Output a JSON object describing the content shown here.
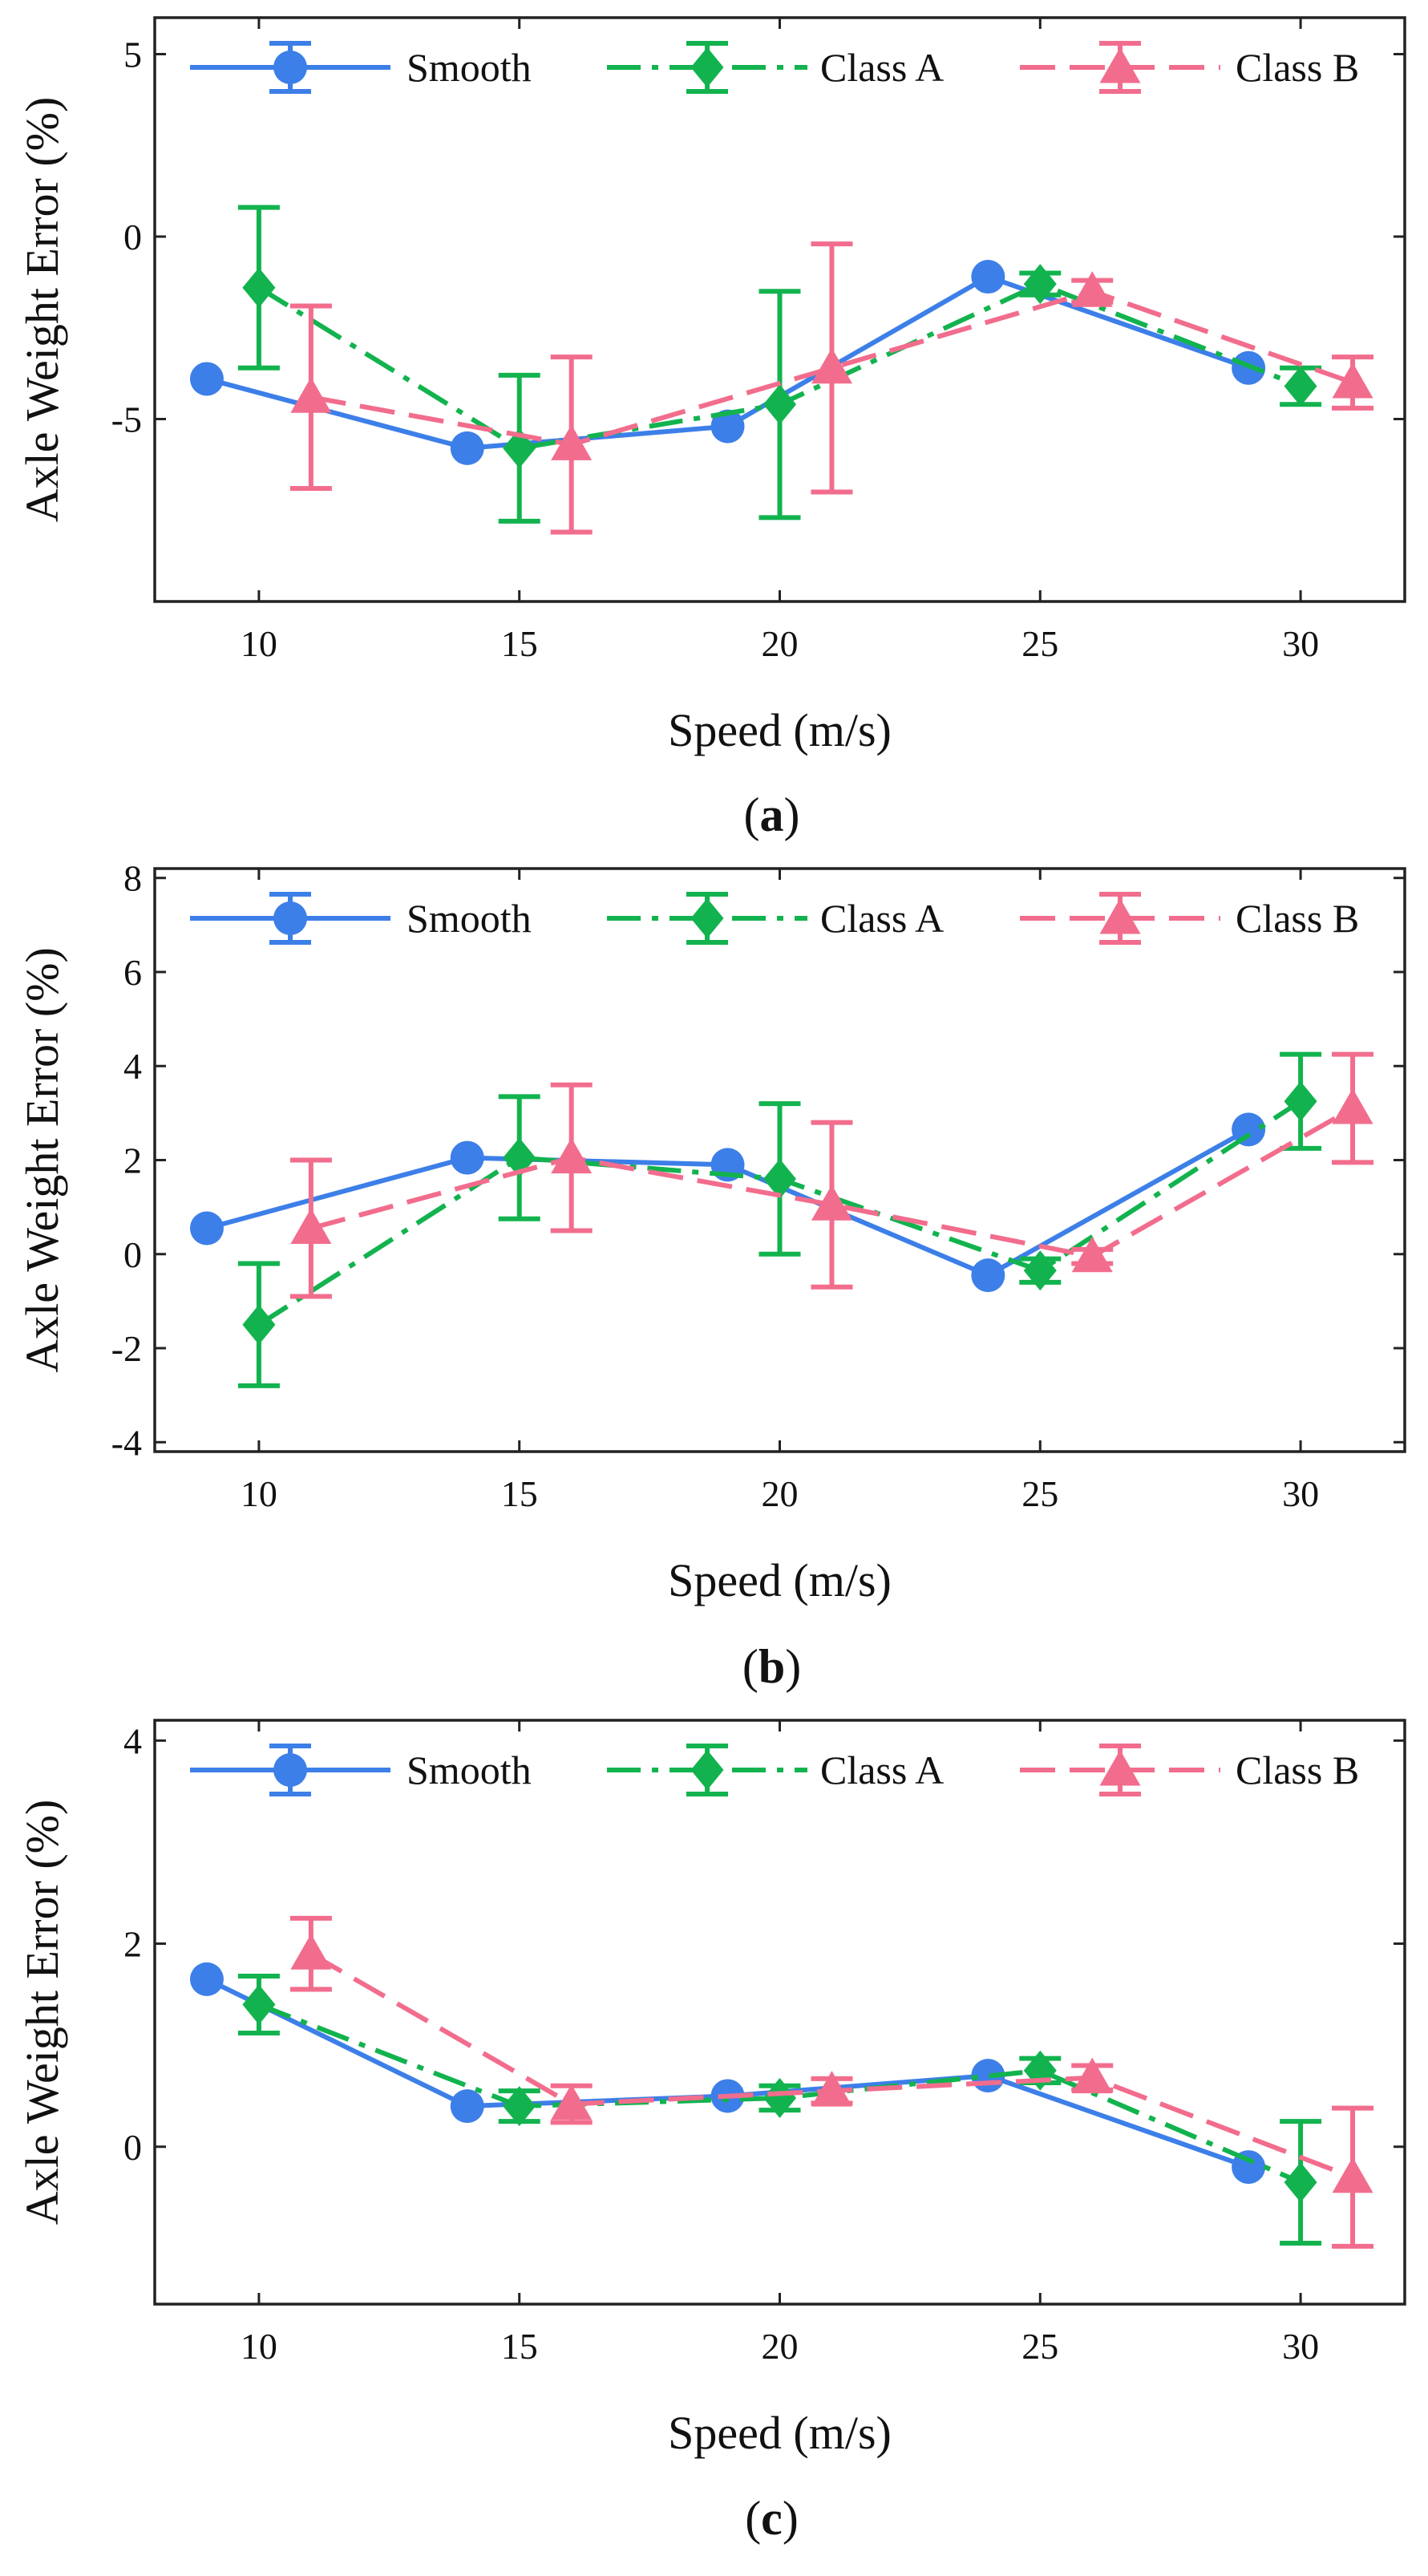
{
  "figure": {
    "panels": [
      {
        "id": "a",
        "caption": [
          "(",
          "a",
          ")"
        ]
      },
      {
        "id": "b",
        "caption": [
          "(",
          "b",
          ")"
        ]
      },
      {
        "id": "c",
        "caption": [
          "(",
          "c",
          ")"
        ]
      }
    ]
  },
  "chart_data": [
    {
      "type": "line",
      "panel": "a",
      "title": "",
      "xlabel": "Speed (m/s)",
      "ylabel": "Axle Weight Error (%)",
      "xlim": [
        8,
        32
      ],
      "ylim": [
        -10,
        6
      ],
      "xticks": [
        10,
        15,
        20,
        25,
        30
      ],
      "yticks": [
        -5,
        0,
        5
      ],
      "grid": false,
      "legend": "top",
      "series": [
        {
          "name": "Smooth",
          "color": "#3d7fe8",
          "marker": "circle",
          "line": "solid",
          "x": [
            9,
            14,
            19,
            24,
            29
          ],
          "y": [
            -3.9,
            -5.8,
            -5.2,
            -1.1,
            -3.6
          ],
          "err": [
            0,
            0,
            0,
            0,
            0
          ]
        },
        {
          "name": "Class A",
          "color": "#12b34e",
          "marker": "diamond",
          "line": "dashdot",
          "x": [
            10,
            15,
            20,
            25,
            30
          ],
          "y": [
            -1.4,
            -5.8,
            -4.6,
            -1.3,
            -4.1
          ],
          "err": [
            2.2,
            2.0,
            3.1,
            0.3,
            0.5
          ]
        },
        {
          "name": "Class B",
          "color": "#f26d8d",
          "marker": "triangle",
          "line": "dashed",
          "x": [
            11,
            16,
            21,
            26,
            31
          ],
          "y": [
            -4.4,
            -5.7,
            -3.6,
            -1.5,
            -4.0
          ],
          "err": [
            2.5,
            2.4,
            3.4,
            0.3,
            0.7
          ]
        }
      ]
    },
    {
      "type": "line",
      "panel": "b",
      "title": "",
      "xlabel": "Speed (m/s)",
      "ylabel": "Axle Weight Error (%)",
      "xlim": [
        8,
        32
      ],
      "ylim": [
        -4.2,
        8.2
      ],
      "xticks": [
        10,
        15,
        20,
        25,
        30
      ],
      "yticks": [
        -4,
        -2,
        0,
        2,
        4,
        6,
        8
      ],
      "grid": false,
      "legend": "top",
      "series": [
        {
          "name": "Smooth",
          "color": "#3d7fe8",
          "marker": "circle",
          "line": "solid",
          "x": [
            9,
            14,
            19,
            24,
            29
          ],
          "y": [
            0.55,
            2.05,
            1.9,
            -0.45,
            2.65
          ],
          "err": [
            0,
            0,
            0,
            0,
            0
          ]
        },
        {
          "name": "Class A",
          "color": "#12b34e",
          "marker": "diamond",
          "line": "dashdot",
          "x": [
            10,
            15,
            20,
            25,
            30
          ],
          "y": [
            -1.5,
            2.05,
            1.6,
            -0.35,
            3.25
          ],
          "err": [
            1.3,
            1.3,
            1.6,
            0.25,
            1.0
          ]
        },
        {
          "name": "Class B",
          "color": "#f26d8d",
          "marker": "triangle",
          "line": "dashed",
          "x": [
            11,
            16,
            21,
            26,
            31
          ],
          "y": [
            0.55,
            2.05,
            1.05,
            -0.05,
            3.1
          ],
          "err": [
            1.45,
            1.55,
            1.75,
            0.15,
            1.15
          ]
        }
      ]
    },
    {
      "type": "line",
      "panel": "c",
      "title": "",
      "xlabel": "Speed (m/s)",
      "ylabel": "Axle Weight Error (%)",
      "xlim": [
        8,
        32
      ],
      "ylim": [
        -1.55,
        4.2
      ],
      "xticks": [
        10,
        15,
        20,
        25,
        30
      ],
      "yticks": [
        0,
        2,
        4
      ],
      "grid": false,
      "legend": "top",
      "series": [
        {
          "name": "Smooth",
          "color": "#3d7fe8",
          "marker": "circle",
          "line": "solid",
          "x": [
            9,
            14,
            19,
            24,
            29
          ],
          "y": [
            1.65,
            0.4,
            0.5,
            0.7,
            -0.2
          ],
          "err": [
            0,
            0,
            0,
            0,
            0
          ]
        },
        {
          "name": "Class A",
          "color": "#12b34e",
          "marker": "diamond",
          "line": "dashdot",
          "x": [
            10,
            15,
            20,
            25,
            30
          ],
          "y": [
            1.4,
            0.4,
            0.48,
            0.75,
            -0.35
          ],
          "err": [
            0.28,
            0.15,
            0.12,
            0.12,
            0.6
          ]
        },
        {
          "name": "Class B",
          "color": "#f26d8d",
          "marker": "triangle",
          "line": "dashed",
          "x": [
            11,
            16,
            21,
            26,
            31
          ],
          "y": [
            1.9,
            0.42,
            0.55,
            0.68,
            -0.3
          ],
          "err": [
            0.35,
            0.18,
            0.12,
            0.12,
            0.68
          ]
        }
      ]
    }
  ]
}
